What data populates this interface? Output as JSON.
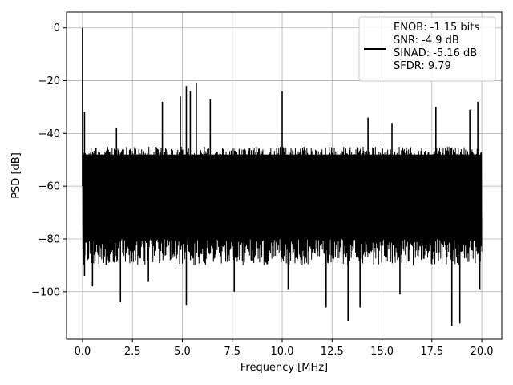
{
  "chart_data": {
    "type": "line",
    "xlabel": "Frequency [MHz]",
    "ylabel": "PSD [dB]",
    "xlim": [
      -0.8,
      21.0
    ],
    "ylim": [
      -118,
      6
    ],
    "grid": true,
    "x_ticks": [
      0,
      2.5,
      5,
      7.5,
      10,
      12.5,
      15,
      17.5,
      20
    ],
    "x_tick_labels": [
      "0.0",
      "2.5",
      "5.0",
      "7.5",
      "10.0",
      "12.5",
      "15.0",
      "17.5",
      "20.0"
    ],
    "y_ticks": [
      0,
      -20,
      -40,
      -60,
      -80,
      -100
    ],
    "y_tick_labels": [
      "0",
      "−20",
      "−40",
      "−60",
      "−80",
      "−100"
    ],
    "legend": {
      "placement": "upper right",
      "entries": [
        "ENOB: -1.15 bits",
        "SNR: -4.9 dB",
        "SINAD: -5.16 dB",
        "SFDR: 9.79"
      ]
    },
    "series": [
      {
        "color": "#000000",
        "x_range": [
          0,
          20
        ],
        "noise_floor_db": -60,
        "typical_upper_db": -45,
        "typical_lower_db": -80,
        "peaks": [
          {
            "x": 0.0,
            "y": 0
          },
          {
            "x": 0.1,
            "y": -32
          },
          {
            "x": 1.7,
            "y": -38
          },
          {
            "x": 4.0,
            "y": -28
          },
          {
            "x": 4.9,
            "y": -26
          },
          {
            "x": 5.2,
            "y": -22
          },
          {
            "x": 5.4,
            "y": -24
          },
          {
            "x": 5.7,
            "y": -21
          },
          {
            "x": 6.4,
            "y": -27
          },
          {
            "x": 10.0,
            "y": -24
          },
          {
            "x": 14.3,
            "y": -34
          },
          {
            "x": 15.5,
            "y": -36
          },
          {
            "x": 17.7,
            "y": -30
          },
          {
            "x": 19.4,
            "y": -31
          },
          {
            "x": 19.8,
            "y": -28
          }
        ],
        "troughs": [
          {
            "x": 0.1,
            "y": -94
          },
          {
            "x": 0.5,
            "y": -98
          },
          {
            "x": 1.9,
            "y": -104
          },
          {
            "x": 3.3,
            "y": -96
          },
          {
            "x": 5.2,
            "y": -105
          },
          {
            "x": 7.6,
            "y": -100
          },
          {
            "x": 10.3,
            "y": -99
          },
          {
            "x": 12.2,
            "y": -106
          },
          {
            "x": 13.3,
            "y": -111
          },
          {
            "x": 13.9,
            "y": -106
          },
          {
            "x": 15.9,
            "y": -101
          },
          {
            "x": 18.5,
            "y": -113
          },
          {
            "x": 18.9,
            "y": -112
          },
          {
            "x": 19.9,
            "y": -99
          }
        ]
      }
    ]
  }
}
